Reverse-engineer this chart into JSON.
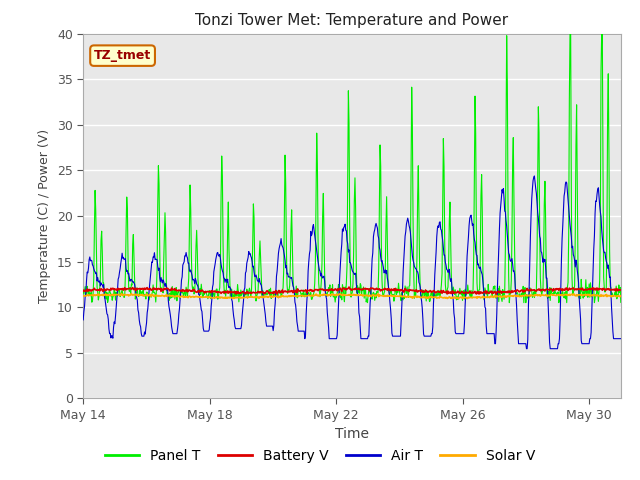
{
  "title": "Tonzi Tower Met: Temperature and Power",
  "xlabel": "Time",
  "ylabel": "Temperature (C) / Power (V)",
  "ylim": [
    0,
    40
  ],
  "yticks": [
    0,
    5,
    10,
    15,
    20,
    25,
    30,
    35,
    40
  ],
  "xtick_positions": [
    0,
    4,
    8,
    12,
    16
  ],
  "xtick_labels": [
    "May 14",
    "May 18",
    "May 22",
    "May 26",
    "May 30"
  ],
  "xlim": [
    0,
    17
  ],
  "bg_color": "#e8e8e8",
  "fig_color": "#ffffff",
  "legend_labels": [
    "Panel T",
    "Battery V",
    "Air T",
    "Solar V"
  ],
  "panel_color": "#00ee00",
  "battery_color": "#dd0000",
  "air_color": "#0000cc",
  "solar_color": "#ffaa00",
  "annotation_text": "TZ_tmet",
  "annotation_bg": "#ffffcc",
  "annotation_border": "#cc6600"
}
